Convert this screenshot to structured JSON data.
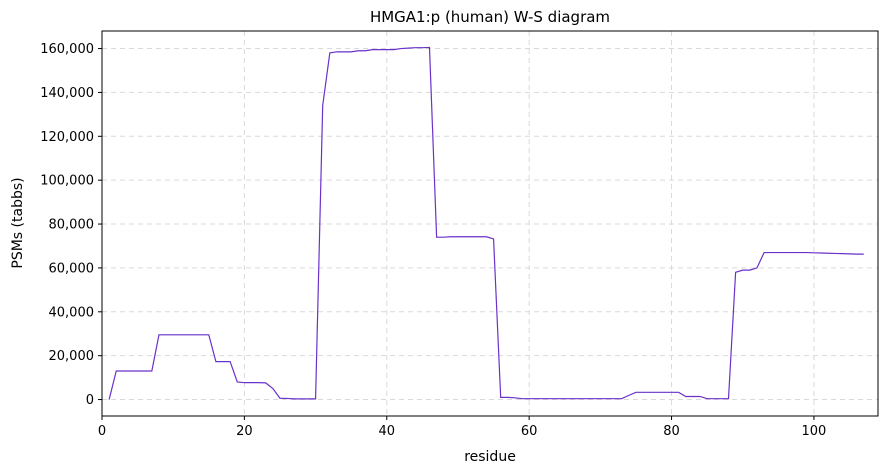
{
  "chart_data": {
    "type": "line",
    "title": "HMGA1:p (human) W-S diagram",
    "xlabel": "residue",
    "ylabel": "PSMs (tabbs)",
    "xlim": [
      0,
      109
    ],
    "ylim": [
      -7500,
      168000
    ],
    "xticks": [
      0,
      20,
      40,
      60,
      80,
      100
    ],
    "yticks": [
      0,
      20000,
      40000,
      60000,
      80000,
      100000,
      120000,
      140000,
      160000
    ],
    "ytick_labels": [
      "0",
      "20,000",
      "40,000",
      "60,000",
      "80,000",
      "100,000",
      "120,000",
      "140,000",
      "160,000"
    ],
    "grid": true,
    "line_color": "#6a32c9",
    "series": [
      {
        "x": [
          1,
          2,
          3,
          4,
          5,
          6,
          7,
          8,
          9,
          10,
          11,
          12,
          13,
          14,
          15,
          16,
          17,
          18,
          19,
          20,
          21,
          22,
          23,
          24,
          25,
          26,
          27,
          28,
          29,
          30,
          31,
          32,
          33,
          34,
          35,
          36,
          37,
          38,
          39,
          40,
          41,
          42,
          43,
          44,
          45,
          46,
          47,
          48,
          49,
          50,
          51,
          52,
          53,
          54,
          55,
          56,
          57,
          58,
          59,
          60,
          61,
          62,
          63,
          64,
          65,
          66,
          67,
          68,
          69,
          70,
          71,
          72,
          73,
          74,
          75,
          76,
          77,
          78,
          79,
          80,
          81,
          82,
          83,
          84,
          85,
          86,
          87,
          88,
          89,
          90,
          91,
          92,
          93,
          94,
          95,
          96,
          97,
          98,
          99,
          100,
          101,
          102,
          103,
          104,
          105,
          106,
          107
        ],
        "values": [
          0,
          13000,
          13000,
          13000,
          13000,
          13000,
          13000,
          29500,
          29500,
          29500,
          29500,
          29500,
          29500,
          29500,
          29500,
          17300,
          17300,
          17300,
          8000,
          7700,
          7700,
          7700,
          7600,
          5000,
          600,
          500,
          300,
          300,
          300,
          300,
          134000,
          158000,
          158500,
          158500,
          158500,
          159000,
          159000,
          159500,
          159500,
          159500,
          159500,
          160000,
          160200,
          160400,
          160400,
          160500,
          74000,
          74000,
          74200,
          74200,
          74200,
          74200,
          74200,
          74200,
          73200,
          1000,
          1000,
          800,
          400,
          400,
          400,
          400,
          400,
          400,
          400,
          400,
          400,
          400,
          400,
          400,
          400,
          400,
          400,
          1900,
          3300,
          3300,
          3300,
          3300,
          3300,
          3300,
          3300,
          1400,
          1400,
          1400,
          400,
          400,
          400,
          400,
          58000,
          59000,
          59000,
          60000,
          67000,
          67000,
          67000,
          67000,
          67000,
          67000,
          67000,
          66900,
          66800,
          66700,
          66600,
          66500,
          66400,
          66300,
          66300
        ]
      }
    ]
  }
}
